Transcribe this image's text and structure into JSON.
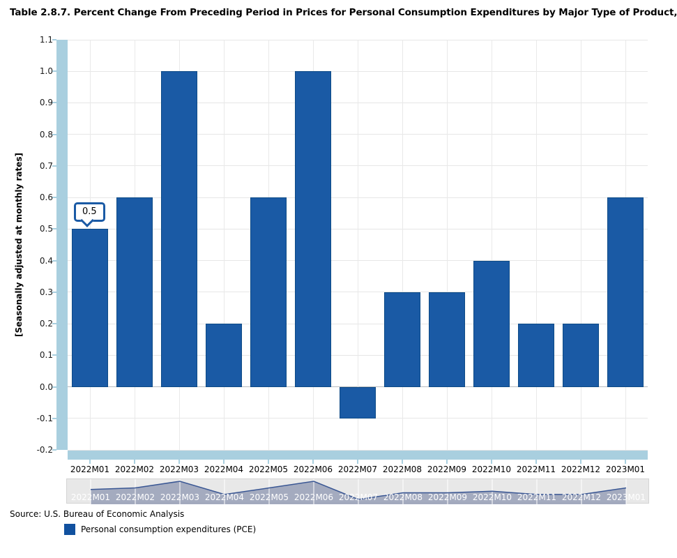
{
  "title": "Table 2.8.7. Percent Change From Preceding Period in Prices for Personal Consumption Expenditures by Major Type of Product,",
  "y_axis_title": "[Seasonally adjusted at monthly rates]",
  "source": "Source: U.S. Bureau of Economic Analysis",
  "legend": {
    "label": "Personal consumption expenditures (PCE)",
    "color": "#11519f"
  },
  "tooltip": {
    "value": "0.5",
    "category": "2022M01"
  },
  "colors": {
    "bar_fill": "#1a5aa5",
    "bar_border": "#0d4a86",
    "axis_band": "#a9cfdf",
    "gridline": "#e6e6e6",
    "navigator_bg": "#e8e8e8",
    "navigator_line": "#3a5794",
    "navigator_fill": "rgba(95,110,150,0.5)"
  },
  "chart_data": {
    "type": "bar",
    "title": "Table 2.8.7. Percent Change From Preceding Period in Prices for Personal Consumption Expenditures by Major Type of Product,",
    "categories": [
      "2022M01",
      "2022M02",
      "2022M03",
      "2022M04",
      "2022M05",
      "2022M06",
      "2022M07",
      "2022M08",
      "2022M09",
      "2022M10",
      "2022M11",
      "2022M12",
      "2023M01"
    ],
    "series": [
      {
        "name": "Personal consumption expenditures (PCE)",
        "values": [
          0.5,
          0.6,
          1.0,
          0.2,
          0.6,
          1.0,
          -0.1,
          0.3,
          0.3,
          0.4,
          0.2,
          0.2,
          0.6
        ]
      }
    ],
    "xlabel": "",
    "ylabel": "[Seasonally adjusted at monthly rates]",
    "ylim": [
      -0.2,
      1.1
    ],
    "ytick_step": 0.1,
    "grid": true,
    "legend_position": "bottom-left",
    "annotations": [
      {
        "category": "2022M01",
        "label": "0.5"
      }
    ],
    "navigator": {
      "type": "area",
      "values": [
        0.5,
        0.6,
        1.0,
        0.2,
        0.6,
        1.0,
        -0.1,
        0.3,
        0.3,
        0.4,
        0.2,
        0.2,
        0.6
      ]
    }
  }
}
